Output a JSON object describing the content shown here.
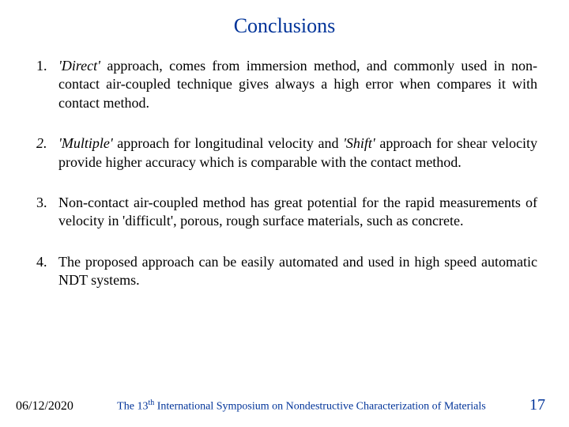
{
  "title": "Conclusions",
  "items": [
    {
      "num": "1.",
      "num_italic": false,
      "parts": [
        {
          "text": "'Direct'",
          "italic": true
        },
        {
          "text": " approach, comes from immersion method, and commonly used in non-contact air-coupled technique gives always a high error when compares it with contact method.",
          "italic": false
        }
      ]
    },
    {
      "num": "2.",
      "num_italic": true,
      "parts": [
        {
          "text": "'Multiple'",
          "italic": true
        },
        {
          "text": " approach for longitudinal velocity and ",
          "italic": false
        },
        {
          "text": "'Shift'",
          "italic": true
        },
        {
          "text": " approach for shear velocity provide higher accuracy which is comparable with the contact method.",
          "italic": false
        }
      ]
    },
    {
      "num": "3.",
      "num_italic": false,
      "parts": [
        {
          "text": "Non-contact air-coupled method has great potential for the rapid measurements of velocity in 'difficult', porous, rough surface materials,  such as concrete.",
          "italic": false
        }
      ]
    },
    {
      "num": "4.",
      "num_italic": false,
      "parts": [
        {
          "text": "The proposed approach can be easily automated and used in high speed automatic NDT systems.",
          "italic": false
        }
      ]
    }
  ],
  "footer": {
    "date": "06/12/2020",
    "caption_prefix": "The 13",
    "caption_super": "th",
    "caption_suffix": " International Symposium on Nondestructive Characterization of Materials",
    "page": "17"
  },
  "colors": {
    "title": "#003399",
    "body": "#000000",
    "footer_caption": "#003399",
    "footer_page": "#003399",
    "background": "#ffffff"
  },
  "fonts": {
    "title_size_pt": 20,
    "body_size_pt": 14,
    "footer_size_pt": 11,
    "family": "Times New Roman"
  }
}
